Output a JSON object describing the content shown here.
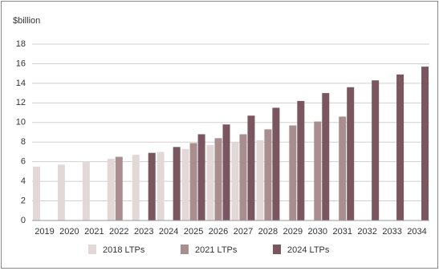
{
  "chart_data": {
    "type": "bar",
    "y_label": "$billion",
    "categories": [
      "2019",
      "2020",
      "2021",
      "2022",
      "2023",
      "2024",
      "2025",
      "2026",
      "2027",
      "2028",
      "2029",
      "2030",
      "2031",
      "2032",
      "2033",
      "2034"
    ],
    "series": [
      {
        "name": "2018 LTPs",
        "color": "#e2d8d8",
        "values": [
          5.5,
          5.7,
          6.0,
          6.3,
          6.7,
          7.0,
          7.3,
          7.7,
          8.0,
          8.2,
          null,
          null,
          null,
          null,
          null,
          null
        ]
      },
      {
        "name": "2021 LTPs",
        "color": "#a98e90",
        "values": [
          null,
          null,
          null,
          6.5,
          null,
          null,
          7.9,
          8.4,
          8.8,
          9.3,
          9.7,
          10.1,
          10.6,
          null,
          null,
          null
        ]
      },
      {
        "name": "2024 LTPs",
        "color": "#7a5660",
        "values": [
          null,
          null,
          null,
          null,
          6.9,
          7.5,
          8.8,
          9.8,
          10.7,
          11.5,
          12.2,
          13.0,
          13.6,
          14.3,
          14.9,
          15.7
        ]
      }
    ],
    "ylim": [
      0,
      18
    ],
    "yticks": [
      0,
      2,
      4,
      6,
      8,
      10,
      12,
      14,
      16,
      18
    ],
    "grid": true
  }
}
